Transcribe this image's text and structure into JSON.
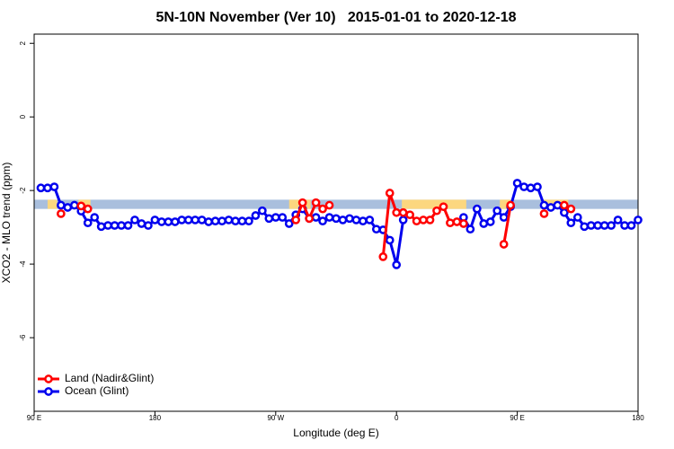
{
  "chart_data": {
    "type": "line",
    "title": "5N-10N November (Ver 10)   2015-01-01 to 2020-12-18",
    "xlabel": "Longitude (deg E)",
    "ylabel": "XCO2 - MLO trend (ppm)",
    "xlim": [
      90,
      540
    ],
    "xticks": [
      {
        "value": 90,
        "label": "90 E"
      },
      180,
      {
        "value": 270,
        "label": "90 W"
      },
      {
        "value": 360,
        "label": "0"
      },
      {
        "value": 450,
        "label": "90 E"
      },
      {
        "value": 540,
        "label": "180"
      }
    ],
    "ylim": [
      -8,
      2.25
    ],
    "yticks": [
      2,
      0,
      -2,
      -4,
      -6
    ],
    "legend": "bottom-left",
    "band": {
      "ylim": [
        -2.5,
        -2.25
      ],
      "color": "#a9bfdd"
    },
    "highlight": {
      "color": "#fcd77f",
      "spans": [
        [
          100,
          107
        ],
        [
          123,
          132
        ],
        [
          280,
          296
        ],
        [
          364,
          412
        ],
        [
          437,
          447
        ],
        [
          468,
          488
        ]
      ]
    },
    "x": [
      95,
      100,
      105,
      110,
      115,
      120,
      125,
      130,
      135,
      140,
      145,
      150,
      155,
      160,
      165,
      170,
      175,
      180,
      185,
      190,
      195,
      200,
      205,
      210,
      215,
      220,
      225,
      230,
      235,
      240,
      245,
      250,
      255,
      260,
      265,
      270,
      275,
      280,
      285,
      290,
      295,
      300,
      305,
      310,
      315,
      320,
      325,
      330,
      335,
      340,
      345,
      350,
      355,
      360,
      365,
      370,
      375,
      380,
      385,
      390,
      395,
      400,
      405,
      410,
      415,
      420,
      425,
      430,
      435,
      440,
      445,
      450,
      455,
      460,
      465,
      470,
      475,
      480,
      485,
      490,
      495,
      500,
      505,
      510,
      515,
      520,
      525,
      530,
      535,
      540
    ],
    "series": [
      {
        "name": "Land (Nadir&Glint)",
        "color": "#ff0000",
        "values": [
          null,
          null,
          null,
          -2.63,
          null,
          null,
          -2.42,
          -2.5,
          null,
          null,
          null,
          null,
          null,
          null,
          null,
          null,
          null,
          null,
          null,
          null,
          null,
          null,
          null,
          null,
          null,
          null,
          null,
          null,
          null,
          null,
          null,
          null,
          null,
          null,
          null,
          null,
          null,
          null,
          -2.8,
          -2.33,
          -2.76,
          -2.33,
          -2.5,
          -2.4,
          null,
          null,
          null,
          null,
          null,
          null,
          null,
          -3.8,
          -2.07,
          -2.6,
          -2.6,
          -2.66,
          -2.83,
          -2.8,
          -2.8,
          -2.55,
          -2.44,
          -2.88,
          -2.85,
          -2.9,
          null,
          null,
          null,
          null,
          null,
          -3.46,
          -2.4,
          null,
          null,
          null,
          null,
          -2.63,
          null,
          null,
          -2.4,
          -2.5,
          null,
          null,
          null,
          null,
          null,
          null,
          null,
          null,
          null,
          null
        ]
      },
      {
        "name": "Ocean (Glint)",
        "color": "#0000ee",
        "values": [
          -1.93,
          -1.93,
          -1.9,
          -2.4,
          -2.46,
          -2.4,
          -2.56,
          -2.88,
          -2.73,
          -2.98,
          -2.95,
          -2.95,
          -2.95,
          -2.95,
          -2.8,
          -2.9,
          -2.95,
          -2.8,
          -2.85,
          -2.85,
          -2.85,
          -2.8,
          -2.8,
          -2.8,
          -2.8,
          -2.85,
          -2.83,
          -2.83,
          -2.8,
          -2.83,
          -2.83,
          -2.83,
          -2.68,
          -2.55,
          -2.76,
          -2.73,
          -2.73,
          -2.9,
          -2.66,
          -2.5,
          -2.76,
          -2.73,
          -2.83,
          -2.73,
          -2.76,
          -2.8,
          -2.76,
          -2.8,
          -2.83,
          -2.8,
          -3.05,
          -3.07,
          -3.35,
          -4.02,
          -2.8,
          null,
          null,
          null,
          null,
          null,
          null,
          null,
          null,
          -2.73,
          -3.05,
          -2.5,
          -2.9,
          -2.85,
          -2.55,
          -2.73,
          -2.44,
          -1.8,
          -1.9,
          -1.93,
          -1.9,
          -2.4,
          -2.46,
          -2.4,
          -2.6,
          -2.88,
          -2.73,
          -2.98,
          -2.95,
          -2.95,
          -2.95,
          -2.95,
          -2.8,
          -2.95,
          -2.95,
          -2.8
        ]
      }
    ]
  }
}
